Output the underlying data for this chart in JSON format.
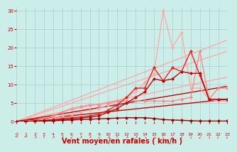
{
  "background_color": "#cceee8",
  "grid_color": "#aacccc",
  "xlabel": "Vent moyen/en rafales ( km/h )",
  "xlabel_color": "#cc0000",
  "xlabel_fontsize": 7,
  "ytick_color": "#cc0000",
  "xtick_color": "#cc0000",
  "ylim": [
    0,
    31
  ],
  "xlim": [
    0,
    23
  ],
  "yticks": [
    0,
    5,
    10,
    15,
    20,
    25,
    30
  ],
  "xticks": [
    0,
    1,
    2,
    3,
    4,
    5,
    6,
    7,
    8,
    9,
    10,
    11,
    12,
    13,
    14,
    15,
    16,
    17,
    18,
    19,
    20,
    21,
    22,
    23
  ],
  "lines": [
    {
      "note": "straight line pink - top slope ~22/23",
      "x": [
        0,
        23
      ],
      "y": [
        0,
        22.0
      ],
      "color": "#ffaaaa",
      "lw": 1.0,
      "marker": null,
      "ms": 0
    },
    {
      "note": "straight line pink - slope ~19/23",
      "x": [
        0,
        23
      ],
      "y": [
        0,
        19.0
      ],
      "color": "#ffaaaa",
      "lw": 1.0,
      "marker": null,
      "ms": 0
    },
    {
      "note": "straight line pink - slope ~12/23",
      "x": [
        0,
        23
      ],
      "y": [
        0,
        12.0
      ],
      "color": "#ffaaaa",
      "lw": 1.0,
      "marker": null,
      "ms": 0
    },
    {
      "note": "straight line red - slope ~9.5/23",
      "x": [
        0,
        23
      ],
      "y": [
        0,
        9.5
      ],
      "color": "#cc0000",
      "lw": 1.0,
      "marker": null,
      "ms": 0
    },
    {
      "note": "straight line dark red - slope ~6/23",
      "x": [
        0,
        23
      ],
      "y": [
        0,
        6.0
      ],
      "color": "#cc0000",
      "lw": 1.0,
      "marker": null,
      "ms": 0
    },
    {
      "note": "light pink jagged line - peaks at x=16 ~30, x=18 ~24, ends ~22",
      "x": [
        0,
        1,
        2,
        3,
        4,
        5,
        6,
        7,
        8,
        9,
        10,
        11,
        12,
        13,
        14,
        15,
        16,
        17,
        18,
        19,
        20,
        21,
        22,
        23
      ],
      "y": [
        0,
        0,
        0.2,
        0.5,
        1.0,
        1.5,
        2.0,
        2.5,
        3.0,
        3.5,
        4.5,
        5.5,
        6.5,
        8.0,
        10.5,
        13.0,
        30.0,
        20.0,
        24.0,
        9.0,
        9.0,
        6.0,
        5.5,
        5.5
      ],
      "color": "#ffaaaa",
      "lw": 1.0,
      "marker": "D",
      "ms": 2
    },
    {
      "note": "medium pink jagged - peaks at x=20 ~19, ends ~9",
      "x": [
        0,
        1,
        2,
        3,
        4,
        5,
        6,
        7,
        8,
        9,
        10,
        11,
        12,
        13,
        14,
        15,
        16,
        17,
        18,
        19,
        20,
        21,
        22,
        23
      ],
      "y": [
        0,
        0.1,
        0.3,
        0.8,
        1.5,
        2.5,
        3.5,
        4.0,
        4.5,
        4.5,
        5.0,
        5.5,
        5.5,
        5.5,
        5.5,
        5.5,
        5.5,
        5.5,
        6.0,
        6.5,
        19.0,
        6.0,
        9.0,
        9.0
      ],
      "color": "#ff8888",
      "lw": 1.0,
      "marker": "D",
      "ms": 2
    },
    {
      "note": "dark red jagged - peaks at x=15 ~14.5, x=17 ~14.5, peaks at x=20 ~19, ends ~6",
      "x": [
        0,
        1,
        2,
        3,
        4,
        5,
        6,
        7,
        8,
        9,
        10,
        11,
        12,
        13,
        14,
        15,
        16,
        17,
        18,
        19,
        20,
        21,
        22,
        23
      ],
      "y": [
        0,
        0,
        0.1,
        0.3,
        0.5,
        0.8,
        1.0,
        1.2,
        1.5,
        2.0,
        3.0,
        4.5,
        6.5,
        9.0,
        9.0,
        14.5,
        11.0,
        14.5,
        13.5,
        19.0,
        12.5,
        6.0,
        6.0,
        6.0
      ],
      "color": "#ee2222",
      "lw": 1.0,
      "marker": "D",
      "ms": 2
    },
    {
      "note": "dark red smaller peaks x=15~14.5 x=18~13.5 x=20~13",
      "x": [
        0,
        1,
        2,
        3,
        4,
        5,
        6,
        7,
        8,
        9,
        10,
        11,
        12,
        13,
        14,
        15,
        16,
        17,
        18,
        19,
        20,
        21,
        22,
        23
      ],
      "y": [
        0,
        0,
        0.1,
        0.2,
        0.3,
        0.5,
        0.7,
        0.9,
        1.2,
        1.5,
        2.5,
        3.5,
        5.0,
        6.5,
        8.0,
        11.5,
        11.0,
        11.5,
        13.5,
        13.0,
        13.0,
        6.0,
        6.0,
        6.0
      ],
      "color": "#cc0000",
      "lw": 1.0,
      "marker": "D",
      "ms": 2
    },
    {
      "note": "bottom dark red - nearly flat, small values",
      "x": [
        0,
        1,
        2,
        3,
        4,
        5,
        6,
        7,
        8,
        9,
        10,
        11,
        12,
        13,
        14,
        15,
        16,
        17,
        18,
        19,
        20,
        21,
        22,
        23
      ],
      "y": [
        0,
        0,
        0,
        0.1,
        0.2,
        0.3,
        0.4,
        0.5,
        0.6,
        0.7,
        0.8,
        0.9,
        1.0,
        1.0,
        1.0,
        0.8,
        0.5,
        0.4,
        0.3,
        0.2,
        0.1,
        0.1,
        0.1,
        0.1
      ],
      "color": "#990000",
      "lw": 1.0,
      "marker": "D",
      "ms": 2
    }
  ],
  "arrow_symbols": [
    "→",
    "→",
    "↗",
    "↑",
    "↗",
    "↗",
    "↙",
    "↗",
    "↗",
    "↙",
    "↗",
    "↑",
    "↗",
    "↗",
    "↘",
    "↘",
    "↓",
    "↓",
    "↓",
    "↓",
    "↙",
    "↓",
    "↓",
    "↓"
  ]
}
